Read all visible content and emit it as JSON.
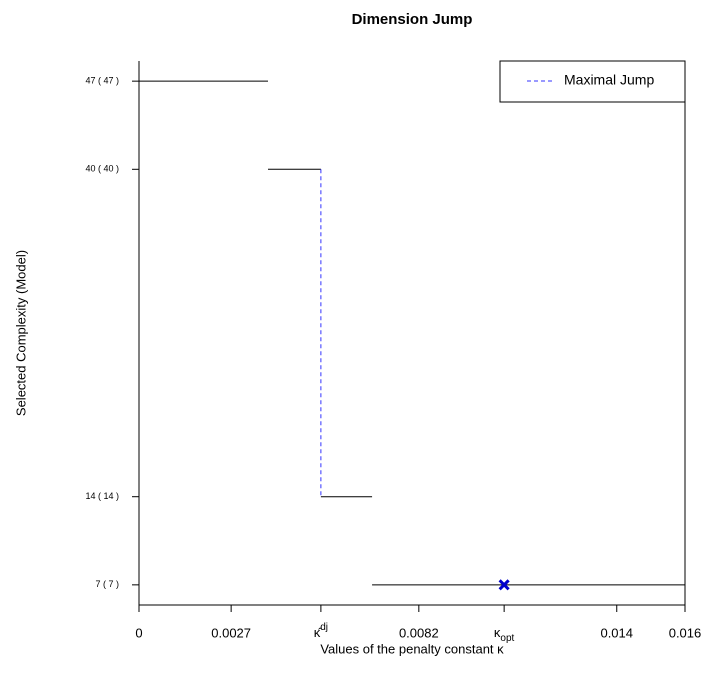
{
  "chart_data": {
    "type": "step",
    "title": "Dimension Jump",
    "xlabel": "Values of the penalty constant κ",
    "ylabel": "Selected Complexity (Model)",
    "segments": {
      "x_start": [
        0,
        0.00378,
        0.00533,
        0.00683
      ],
      "x_end": [
        0.00378,
        0.00533,
        0.00683,
        0.016
      ],
      "values": [
        47,
        40,
        14,
        7
      ],
      "color": "#000000"
    },
    "jump": {
      "name": "Maximal Jump",
      "x": 0.00533,
      "from": 40,
      "to": 14,
      "color": "#3333ff"
    },
    "optimum": {
      "x": 0.0107,
      "y": 7,
      "color": "#0000cc"
    },
    "xlim": [
      0,
      0.016
    ],
    "ylim": [
      5.4,
      48.6
    ],
    "xticks": [
      0,
      0.0027,
      {
        "value": 0.00533,
        "label": "κ̂",
        "sup": "dj"
      },
      0.0082,
      {
        "value": 0.0107,
        "label": "κ",
        "sub": "opt"
      },
      0.014,
      0.016
    ],
    "yticks": [
      {
        "value": 7,
        "label": "7 ( 7 )"
      },
      {
        "value": 14,
        "label": "14 ( 14 )"
      },
      {
        "value": 40,
        "label": "40 ( 40 )"
      },
      {
        "value": 47,
        "label": "47 ( 47 )"
      }
    ],
    "legend": "top-right"
  }
}
